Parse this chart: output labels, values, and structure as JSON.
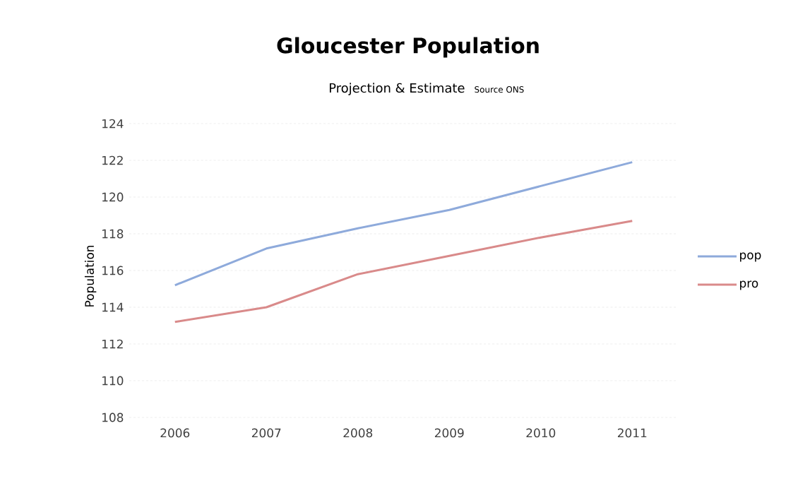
{
  "chart_data": {
    "type": "line",
    "title": "Gloucester Population",
    "subtitle": "Projection & Estimate",
    "annotations": [
      "Source ONS"
    ],
    "ylabel": "Population",
    "categories": [
      "2006",
      "2007",
      "2008",
      "2009",
      "2010",
      "2011"
    ],
    "series": [
      {
        "name": "pop",
        "color": "#8eaadb",
        "values": [
          115.2,
          117.2,
          118.3,
          119.3,
          120.6,
          121.9
        ]
      },
      {
        "name": "pro",
        "color": "#d98a8a",
        "values": [
          113.2,
          114.0,
          115.8,
          116.8,
          117.8,
          118.7
        ]
      }
    ],
    "ylim": [
      108,
      124
    ],
    "yticks": [
      108,
      110,
      112,
      114,
      116,
      118,
      120,
      122,
      124
    ],
    "grid": "y",
    "legend": "right",
    "marker": "none",
    "line_style": "solid"
  }
}
